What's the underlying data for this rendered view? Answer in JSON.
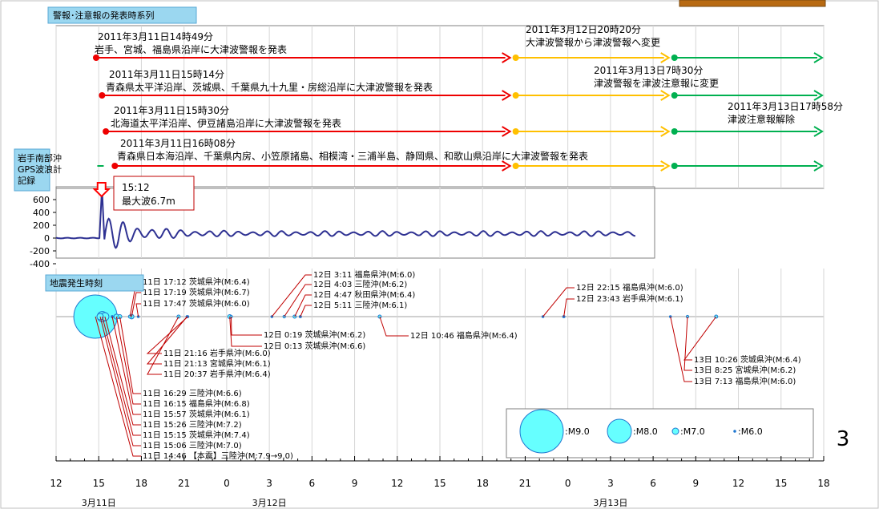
{
  "chart_data": {
    "type": "timeline",
    "colors": {
      "major_warning": "#ee0000",
      "warning": "#ffc000",
      "advisory": "#00b050",
      "wave": "#2e3192",
      "quake_fill": "#66ffff",
      "quake_stroke": "#1f77d0",
      "panel_bg": "#9bd7f0",
      "marker": "#ff0000"
    },
    "x_axis": {
      "unit": "hours from 2011-03-11 00:00",
      "range": [
        12,
        66
      ],
      "tick_values": [
        12,
        15,
        18,
        21,
        24,
        27,
        30,
        33,
        36,
        39,
        42,
        45,
        48,
        51,
        54,
        57,
        60,
        63,
        66
      ],
      "tick_labels": [
        "12",
        "15",
        "18",
        "21",
        "0",
        "3",
        "6",
        "9",
        "12",
        "15",
        "18",
        "21",
        "0",
        "3",
        "6",
        "9",
        "12",
        "15",
        "18"
      ],
      "dates": [
        {
          "x": 15,
          "label": "3月11日"
        },
        {
          "x": 27,
          "label": "3月12日"
        },
        {
          "x": 51,
          "label": "3月13日"
        }
      ]
    },
    "top_panel": {
      "title": "警報･注意報の発表時系列",
      "rows": [
        {
          "segments": [
            {
              "start": 14.8167,
              "end": 44.3333,
              "level": "major_warning"
            },
            {
              "start": 44.3333,
              "end": 55.5,
              "level": "warning"
            },
            {
              "start": 55.5,
              "end": 66,
              "level": "advisory"
            }
          ]
        },
        {
          "segments": [
            {
              "start": 15.2333,
              "end": 44.3333,
              "level": "major_warning"
            },
            {
              "start": 44.3333,
              "end": 55.5,
              "level": "warning"
            },
            {
              "start": 55.5,
              "end": 66,
              "level": "advisory"
            }
          ]
        },
        {
          "segments": [
            {
              "start": 15.5,
              "end": 44.3333,
              "level": "major_warning"
            },
            {
              "start": 44.3333,
              "end": 55.5,
              "level": "warning"
            },
            {
              "start": 55.5,
              "end": 66,
              "level": "advisory"
            }
          ]
        },
        {
          "segments": [
            {
              "start": 16.1333,
              "end": 44.3333,
              "level": "major_warning"
            },
            {
              "start": 44.3333,
              "end": 55.5,
              "level": "warning"
            },
            {
              "start": 55.5,
              "end": 66,
              "level": "advisory"
            }
          ]
        }
      ],
      "annotations": [
        {
          "time": "2011年3月11日14時49分",
          "text": "岩手、宮城、福島県沿岸に大津波警報を発表"
        },
        {
          "time": "2011年3月11日15時14分",
          "text": "青森県太平洋沿岸、茨城県、千葉県九十九里・房総沿岸に大津波警報を発表"
        },
        {
          "time": "2011年3月11日15時30分",
          "text": "北海道太平洋沿岸、伊豆諸島沿岸に大津波警報を発表"
        },
        {
          "time": "2011年3月11日16時08分",
          "text": "青森県日本海沿岸、千葉県内房、小笠原諸島、相模湾・三浦半島、静岡県、和歌山県沿岸に大津波警報を発表"
        },
        {
          "time": "2011年3月12日20時20分",
          "text": "大津波警報から津波警報へ変更"
        },
        {
          "time": "2011年3月13日7時30分",
          "text": "津波警報を津波注意報に変更"
        },
        {
          "time": "2011年3月13日17時58分",
          "text": "津波注意報解除"
        }
      ]
    },
    "wave_panel": {
      "title": "岩手南部沖\nGPS波浪計\n記録",
      "y_ticks": [
        600,
        400,
        200,
        0,
        -200,
        -400
      ],
      "ylim": [
        -400,
        600
      ],
      "peak": {
        "time_label": "15:12",
        "x": 15.2,
        "value": 670,
        "label": "最大波6.7m"
      },
      "x_range": [
        12,
        52.75
      ]
    },
    "quake_panel": {
      "title": "地震発生時刻",
      "events": [
        {
          "x": 14.767,
          "mag": 9.0,
          "label": "11日 14:46 【本震】三陸沖(M:7.9→9.0)"
        },
        {
          "x": 15.1,
          "mag": 7.0,
          "label": "11日 15:06 三陸沖(M:7.0)"
        },
        {
          "x": 15.25,
          "mag": 7.4,
          "label": "11日 15:15 茨城県沖(M:7.4)"
        },
        {
          "x": 15.433,
          "mag": 7.2,
          "label": "11日 15:26 三陸沖(M:7.2)"
        },
        {
          "x": 15.95,
          "mag": 6.1,
          "label": "11日 15:57 茨城県沖(M:6.1)"
        },
        {
          "x": 16.25,
          "mag": 6.8,
          "label": "11日 16:15 福島県沖(M:6.8)"
        },
        {
          "x": 16.483,
          "mag": 6.6,
          "label": "11日 16:29 三陸沖(M:6.6)"
        },
        {
          "x": 17.2,
          "mag": 6.4,
          "label": "11日 17:12 茨城県沖(M:6.4)"
        },
        {
          "x": 17.317,
          "mag": 6.7,
          "label": "11日 17:19 茨城県沖(M:6.7)"
        },
        {
          "x": 17.783,
          "mag": 6.0,
          "label": "11日 17:47 茨城県沖(M:6.0)"
        },
        {
          "x": 20.617,
          "mag": 6.4,
          "label": "11日 20:37 岩手県沖(M:6.4)"
        },
        {
          "x": 21.217,
          "mag": 6.1,
          "label": "11日 21:13 宮城県沖(M:6.1)"
        },
        {
          "x": 21.267,
          "mag": 6.0,
          "label": "11日 21:16 岩手県沖(M:6.0)"
        },
        {
          "x": 24.217,
          "mag": 6.6,
          "label": "12日 0:13 茨城県沖(M:6.6)"
        },
        {
          "x": 24.317,
          "mag": 6.2,
          "label": "12日 0:19 茨城県沖(M:6.2)"
        },
        {
          "x": 27.183,
          "mag": 6.0,
          "label": "12日 3:11 福島県沖(M:6.0)"
        },
        {
          "x": 28.05,
          "mag": 6.2,
          "label": "12日 4:03 三陸沖(M:6.2)"
        },
        {
          "x": 28.783,
          "mag": 6.4,
          "label": "12日 4:47 秋田県沖(M:6.4)"
        },
        {
          "x": 29.183,
          "mag": 6.1,
          "label": "12日 5:11 三陸沖(M:6.1)"
        },
        {
          "x": 34.767,
          "mag": 6.4,
          "label": "12日 10:46 福島県沖(M:6.4)"
        },
        {
          "x": 46.25,
          "mag": 6.0,
          "label": "12日 22:15 福島県沖(M:6.0)"
        },
        {
          "x": 47.717,
          "mag": 6.1,
          "label": "12日 23:43 岩手県沖(M:6.1)"
        },
        {
          "x": 55.217,
          "mag": 6.0,
          "label": "13日 7:13 福島県沖(M:6.0)"
        },
        {
          "x": 56.417,
          "mag": 6.2,
          "label": "13日 8:25 宮城県沖(M:6.2)"
        },
        {
          "x": 58.433,
          "mag": 6.4,
          "label": "13日 10:26 茨城県沖(M:6.4)"
        }
      ],
      "legend": [
        {
          "mag": 9.0,
          "label": ":M9.0"
        },
        {
          "mag": 8.0,
          "label": ":M8.0"
        },
        {
          "mag": 7.0,
          "label": ":M7.0"
        },
        {
          "mag": 6.0,
          "label": ":M6.0"
        }
      ]
    },
    "page_number": "3"
  }
}
